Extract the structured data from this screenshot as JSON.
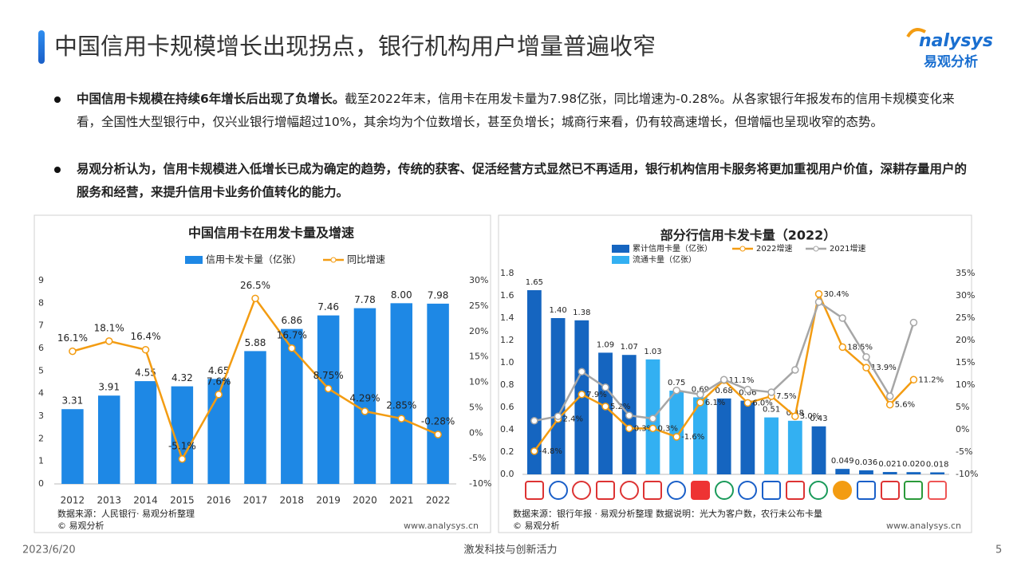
{
  "header": {
    "title": "中国信用卡规模增长出现拐点，银行机构用户增量普遍收窄",
    "logo": "nalysys",
    "logo_sub": "易观分析"
  },
  "bullets": [
    {
      "bold": "中国信用卡规模在持续6年增长后出现了负增长。",
      "text": "截至2022年末，信用卡在用发卡量为7.98亿张，同比增速为-0.28%。从各家银行年报发布的信用卡规模变化来看，全国性大型银行中，仅兴业银行增幅超过10%，其余均为个位数增长，甚至负增长；城商行来看，仍有较高速增长，但增幅也呈现收窄的态势。"
    },
    {
      "bold": "易观分析认为，信用卡规模进入低增长已成为确定的趋势，传统的获客、促活经营方式显然已不再适用，银行机构信用卡服务将更加重视用户价值，深耕存量用户的服务和经营，来提升信用卡业务价值转化的能力。"
    }
  ],
  "chart_data": [
    {
      "type": "bar_line",
      "title": "中国信用卡在用发卡量及增速",
      "categories": [
        "2012",
        "2013",
        "2014",
        "2015",
        "2016",
        "2017",
        "2018",
        "2019",
        "2020",
        "2021",
        "2022"
      ],
      "series": [
        {
          "name": "信用卡发卡量（亿张）",
          "type": "bar",
          "color": "#1e88e5",
          "values": [
            3.31,
            3.91,
            4.55,
            4.32,
            4.65,
            5.88,
            6.86,
            7.46,
            7.78,
            8.0,
            7.98
          ],
          "value_labels": [
            "3.31",
            "3.91",
            "4.55",
            "4.32",
            "4.65",
            "5.88",
            "6.86",
            "7.46",
            "7.78",
            "8.00",
            "7.98"
          ]
        },
        {
          "name": "同比增速",
          "type": "line",
          "axis": "y2",
          "color": "#f39c12",
          "values": [
            16.1,
            18.1,
            16.4,
            -5.1,
            7.6,
            26.5,
            16.7,
            8.75,
            4.29,
            2.85,
            -0.28
          ],
          "value_labels": [
            "16.1%",
            "18.1%",
            "16.4%",
            "-5.1%",
            "7.6%",
            "26.5%",
            "16.7%",
            "8.75%",
            "4.29%",
            "2.85%",
            "-0.28%"
          ]
        }
      ],
      "ylim": [
        0,
        9
      ],
      "yticks": [
        0,
        1,
        2,
        3,
        4,
        5,
        6,
        7,
        8,
        9
      ],
      "y2lim": [
        -10,
        30
      ],
      "y2ticks": [
        {
          "value": -10,
          "label": "-10%"
        },
        {
          "value": -5,
          "label": "-5%"
        },
        {
          "value": 0,
          "label": "0%"
        },
        {
          "value": 5,
          "label": "5%"
        },
        {
          "value": 10,
          "label": "10%"
        },
        {
          "value": 15,
          "label": "15%"
        },
        {
          "value": 20,
          "label": "20%"
        },
        {
          "value": 25,
          "label": "25%"
        },
        {
          "value": 30,
          "label": "30%"
        }
      ],
      "legend": "top"
    },
    {
      "type": "bar_line",
      "title": "部分行信用卡发卡量（2022）",
      "categories": [
        null,
        null,
        null,
        null,
        null,
        null,
        null,
        null,
        null,
        null,
        null,
        null,
        null,
        null,
        null,
        null,
        null,
        null
      ],
      "series": [
        {
          "name": "累计信用卡量（亿张）",
          "type": "bar",
          "color": "#1565c0",
          "values": [
            1.65,
            1.4,
            1.38,
            1.09,
            1.07,
            null,
            null,
            null,
            0.68,
            0.66,
            null,
            null,
            0.43,
            0.049,
            0.036,
            0.021,
            0.02,
            0.018
          ],
          "value_labels": [
            "1.65",
            "1.40",
            "1.38",
            "1.09",
            "1.07",
            null,
            null,
            null,
            "0.68",
            "0.66",
            null,
            null,
            "0.43",
            "0.049",
            "0.036",
            "0.021",
            "0.020",
            "0.018"
          ]
        },
        {
          "name": "2022增速",
          "type": "line",
          "axis": "y2",
          "color": "#f39c12",
          "values": [
            -4.8,
            2.4,
            7.9,
            5.2,
            0.3,
            0.3,
            -1.6,
            6.1,
            11.1,
            6.0,
            7.5,
            3.0,
            30.4,
            18.5,
            13.9,
            5.6,
            11.2,
            null
          ],
          "value_labels": [
            "-4.8%",
            "2.4%",
            "7.9%",
            "5.2%",
            "0.3%",
            "0.3%",
            "-1.6%",
            "6.1%",
            "11.1%",
            "6.0%",
            "7.5%",
            "3.0%",
            "30.4%",
            "18.5%",
            "13.9%",
            "5.6%",
            "11.2%",
            null
          ]
        },
        {
          "name": "2021增速",
          "type": "line",
          "axis": "y2",
          "color": "#a6a6a6",
          "values": [
            2.0,
            3.0,
            13.0,
            9.5,
            3.2,
            2.5,
            8.8,
            7.9,
            11.2,
            9.0,
            8.4,
            13.4,
            28.6,
            25.0,
            16.3,
            7.5,
            24.0,
            null
          ]
        },
        {
          "name": "流通卡量（亿张）",
          "type": "bar",
          "color": "#33b0f2",
          "values": [
            null,
            null,
            null,
            null,
            null,
            1.03,
            0.75,
            0.69,
            null,
            null,
            0.51,
            0.48,
            null,
            null,
            null,
            null,
            null,
            null
          ],
          "value_labels": [
            null,
            null,
            null,
            null,
            null,
            "1.03",
            "0.75",
            "0.69",
            null,
            null,
            "0.51",
            "0.48",
            null,
            null,
            null,
            null,
            null,
            null
          ]
        }
      ],
      "ylim": [
        0,
        1.8
      ],
      "yticks": [
        {
          "value": 0,
          "label": "0.0"
        },
        0.2,
        0.4,
        0.6,
        0.8,
        {
          "value": 1,
          "label": "1.0"
        },
        1.2,
        1.4,
        1.6,
        1.8
      ],
      "y2lim": [
        -10,
        35
      ],
      "y2ticks": [
        {
          "value": -10,
          "label": "-10%"
        },
        {
          "value": -5,
          "label": "-5%"
        },
        {
          "value": 0,
          "label": "0%"
        },
        {
          "value": 5,
          "label": "5%"
        },
        {
          "value": 10,
          "label": "10%"
        },
        {
          "value": 15,
          "label": "15%"
        },
        {
          "value": 20,
          "label": "20%"
        },
        {
          "value": 25,
          "label": "25%"
        },
        {
          "value": 30,
          "label": "30%"
        },
        {
          "value": 35,
          "label": "35%"
        }
      ],
      "legend": "top"
    }
  ],
  "notes": [
    {
      "source": "数据来源：人民银行· 易观分析整理",
      "copyright": "© 易观分析",
      "url": "www.analysys.cn"
    },
    {
      "source": "数据来源：银行年报 · 易观分析整理  数据说明：光大为客户数，农行未公布卡量",
      "copyright": "© 易观分析",
      "url": "www.analysys.cn"
    }
  ],
  "footer": {
    "date": "2023/6/20",
    "slogan": "激发科技与创新活力",
    "page": "5"
  }
}
